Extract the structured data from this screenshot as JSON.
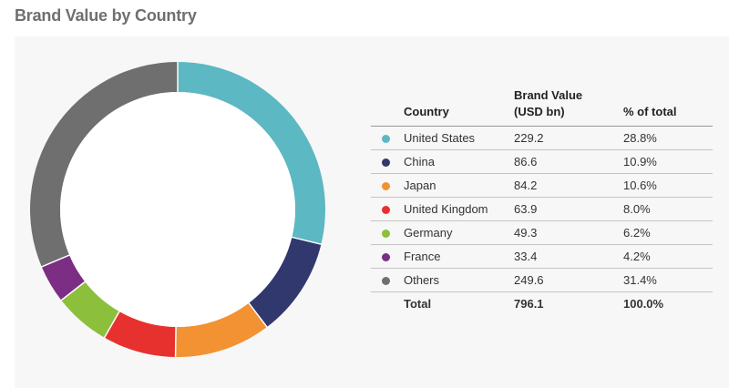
{
  "chart_data": {
    "type": "pie",
    "title": "Brand Value by Country",
    "columns": {
      "country": "Country",
      "value_line1": "Brand Value",
      "value_line2": "(USD bn)",
      "percent": "% of total"
    },
    "rows": [
      {
        "country": "United States",
        "value": "229.2",
        "percent": "28.8%",
        "color": "#5cb8c2"
      },
      {
        "country": "China",
        "value": "86.6",
        "percent": "10.9%",
        "color": "#31386e"
      },
      {
        "country": "Japan",
        "value": "84.2",
        "percent": "10.6%",
        "color": "#f39232"
      },
      {
        "country": "United Kingdom",
        "value": "63.9",
        "percent": "8.0%",
        "color": "#e7312e"
      },
      {
        "country": "Germany",
        "value": "49.3",
        "percent": "6.2%",
        "color": "#8cbf3c"
      },
      {
        "country": "France",
        "value": "33.4",
        "percent": "4.2%",
        "color": "#7b2e84"
      },
      {
        "country": "Others",
        "value": "249.6",
        "percent": "31.4%",
        "color": "#6f6f6f"
      }
    ],
    "total": {
      "label": "Total",
      "value": "796.1",
      "percent": "100.0%"
    }
  }
}
